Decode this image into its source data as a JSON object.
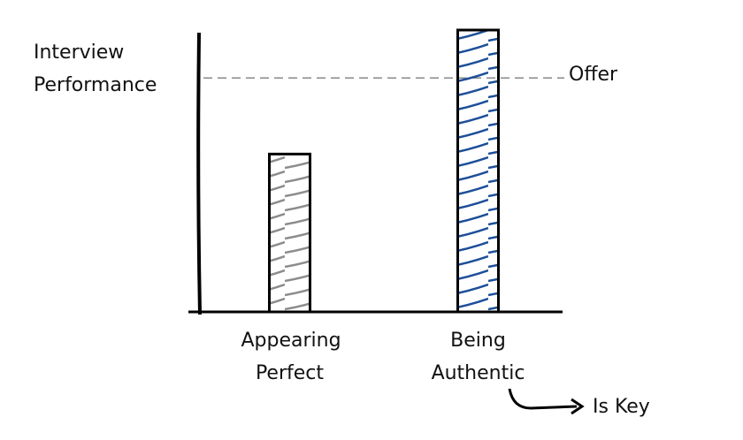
{
  "chart_data": {
    "type": "bar",
    "ylabel": [
      "Interview",
      "Performance"
    ],
    "categories": [
      "Appearing Perfect",
      "Being Authentic"
    ],
    "values": [
      56,
      100
    ],
    "colors": [
      "#8c8c8c",
      "#1d4f99"
    ],
    "ylim": [
      0,
      100
    ],
    "reference": {
      "label": "Offer",
      "value": 83
    },
    "annotation": "Is Key"
  }
}
